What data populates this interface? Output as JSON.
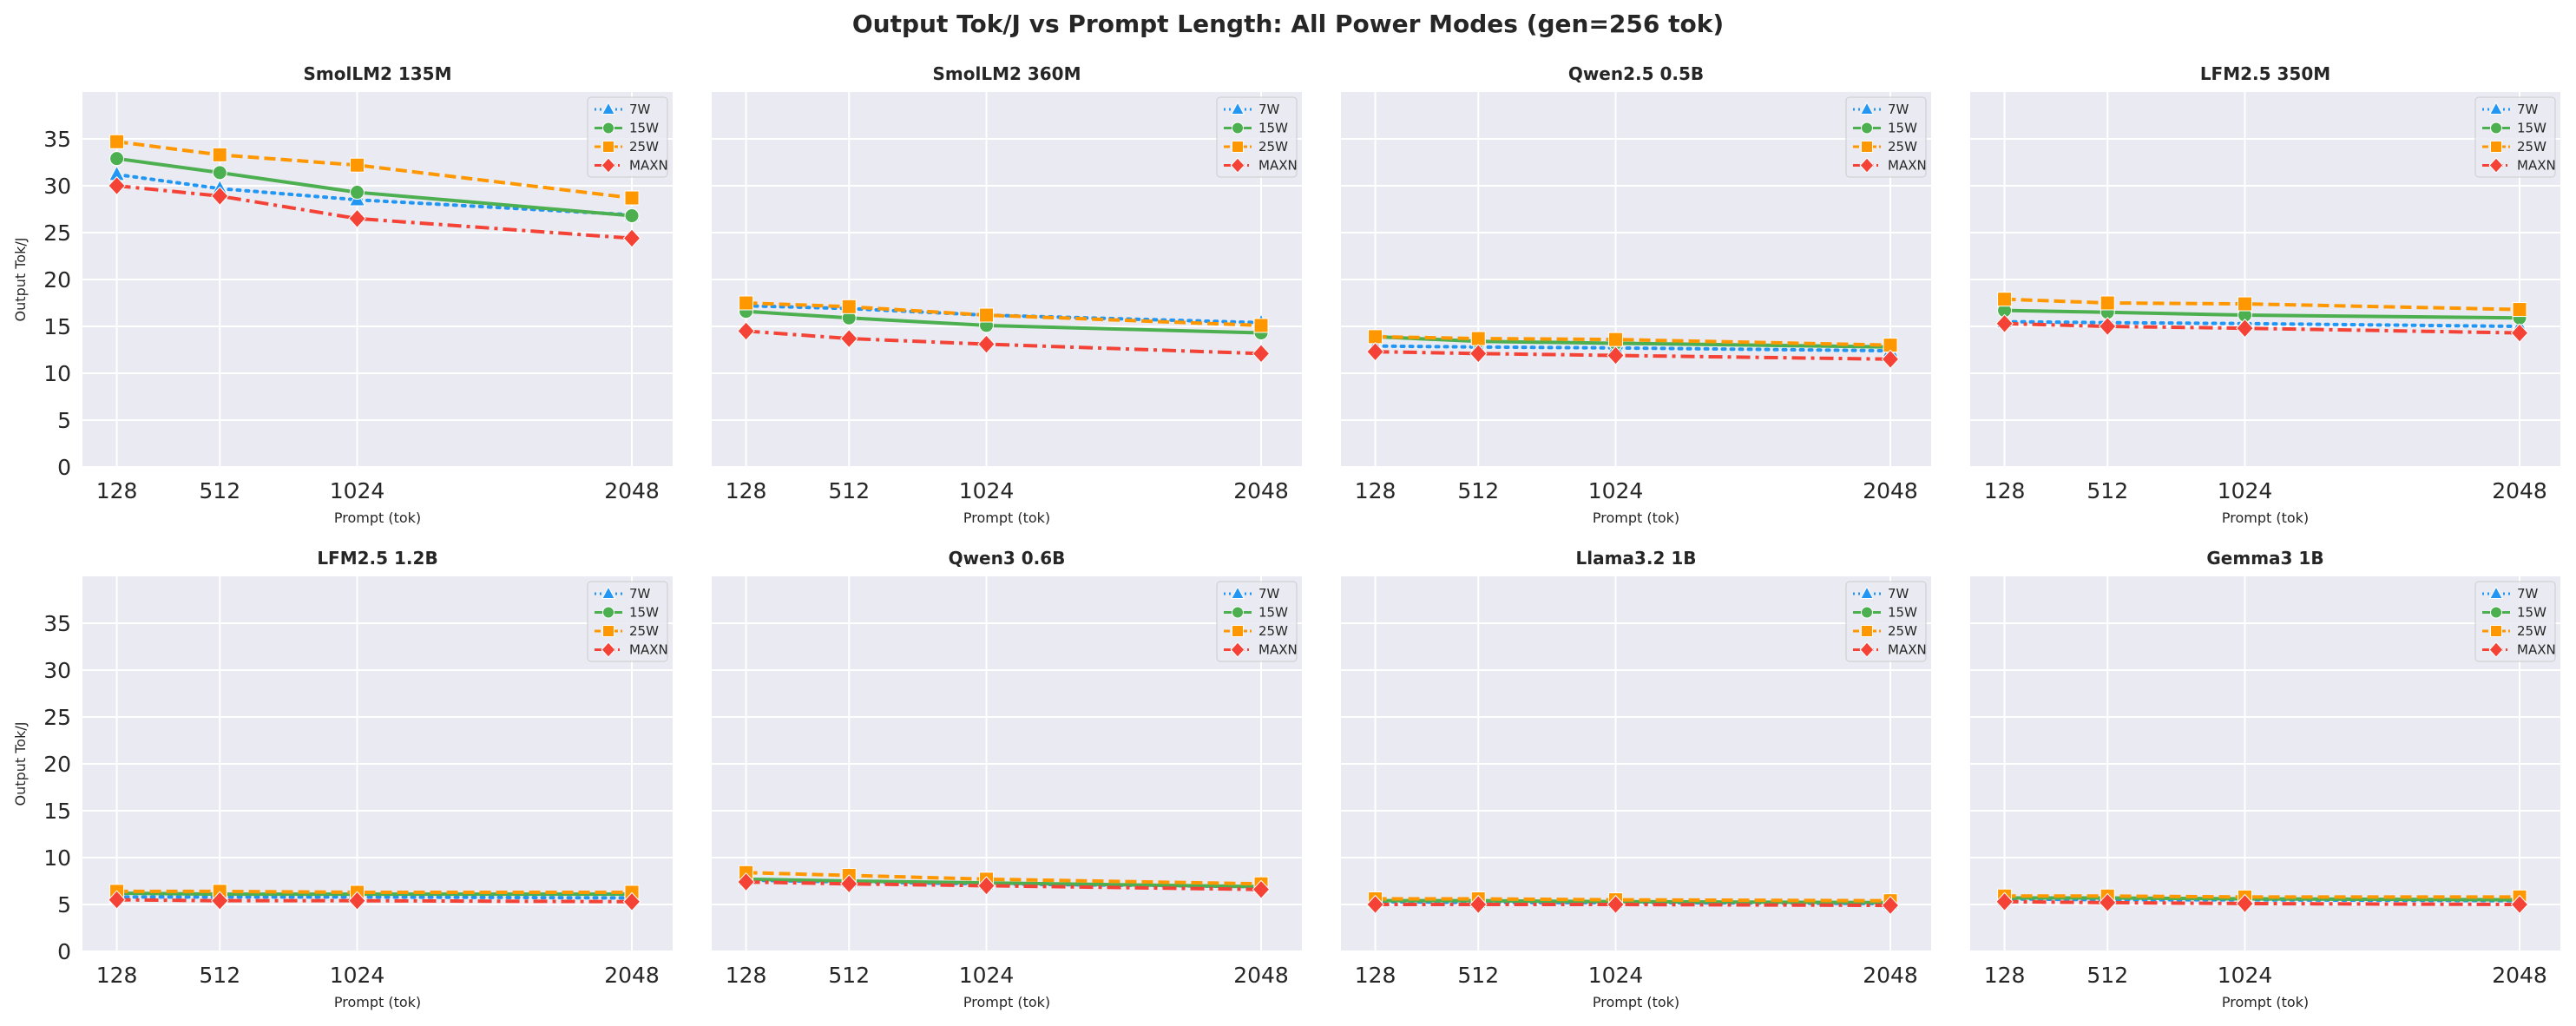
{
  "figure_title": "Output Tok/J vs Prompt Length: All Power Modes (gen=256 tok)",
  "colors": {
    "7W": "#2196f3",
    "15W": "#4caf50",
    "25W": "#ff9800",
    "MAXN": "#f44336",
    "panel_bg": "#eaeaf2",
    "grid": "#ffffff"
  },
  "chart_data": [
    {
      "type": "line",
      "title": "SmolLM2 135M",
      "xlabel": "Prompt (tok)",
      "ylabel": "Output Tok/J",
      "x": [
        128,
        512,
        1024,
        2048
      ],
      "xticks": [
        "128",
        "512",
        "1024",
        "2048"
      ],
      "ylim": [
        0,
        40
      ],
      "yticks": [
        "0",
        "5",
        "10",
        "15",
        "20",
        "25",
        "30",
        "35"
      ],
      "grid": true,
      "legend_position": "top-right",
      "series": [
        {
          "name": "7W",
          "marker": "triangle",
          "dash": "dotted",
          "values": [
            31.2,
            29.7,
            28.5,
            26.9
          ]
        },
        {
          "name": "15W",
          "marker": "circle",
          "dash": "solid",
          "values": [
            32.9,
            31.4,
            29.3,
            26.8
          ]
        },
        {
          "name": "25W",
          "marker": "square",
          "dash": "dashed",
          "values": [
            34.7,
            33.3,
            32.2,
            28.7
          ]
        },
        {
          "name": "MAXN",
          "marker": "diamond",
          "dash": "dashdot",
          "values": [
            30.0,
            28.9,
            26.5,
            24.4
          ]
        }
      ]
    },
    {
      "type": "line",
      "title": "SmolLM2 360M",
      "xlabel": "Prompt (tok)",
      "ylabel": "",
      "x": [
        128,
        512,
        1024,
        2048
      ],
      "xticks": [
        "128",
        "512",
        "1024",
        "2048"
      ],
      "ylim": [
        0,
        40
      ],
      "yticks": [],
      "grid": true,
      "legend_position": "top-right",
      "series": [
        {
          "name": "7W",
          "marker": "triangle",
          "dash": "dotted",
          "values": [
            17.2,
            16.9,
            16.2,
            15.4
          ]
        },
        {
          "name": "15W",
          "marker": "circle",
          "dash": "solid",
          "values": [
            16.6,
            15.9,
            15.1,
            14.3
          ]
        },
        {
          "name": "25W",
          "marker": "square",
          "dash": "dashed",
          "values": [
            17.5,
            17.1,
            16.2,
            15.1
          ]
        },
        {
          "name": "MAXN",
          "marker": "diamond",
          "dash": "dashdot",
          "values": [
            14.5,
            13.7,
            13.1,
            12.1
          ]
        }
      ]
    },
    {
      "type": "line",
      "title": "Qwen2.5 0.5B",
      "xlabel": "Prompt (tok)",
      "ylabel": "",
      "x": [
        128,
        512,
        1024,
        2048
      ],
      "xticks": [
        "128",
        "512",
        "1024",
        "2048"
      ],
      "ylim": [
        0,
        40
      ],
      "yticks": [],
      "grid": true,
      "legend_position": "top-right",
      "series": [
        {
          "name": "7W",
          "marker": "triangle",
          "dash": "dotted",
          "values": [
            12.9,
            12.8,
            12.7,
            12.4
          ]
        },
        {
          "name": "15W",
          "marker": "circle",
          "dash": "solid",
          "values": [
            13.9,
            13.4,
            13.2,
            12.8
          ]
        },
        {
          "name": "25W",
          "marker": "square",
          "dash": "dashed",
          "values": [
            13.9,
            13.7,
            13.6,
            13.0
          ]
        },
        {
          "name": "MAXN",
          "marker": "diamond",
          "dash": "dashdot",
          "values": [
            12.3,
            12.1,
            11.9,
            11.5
          ]
        }
      ]
    },
    {
      "type": "line",
      "title": "LFM2.5 350M",
      "xlabel": "Prompt (tok)",
      "ylabel": "",
      "x": [
        128,
        512,
        1024,
        2048
      ],
      "xticks": [
        "128",
        "512",
        "1024",
        "2048"
      ],
      "ylim": [
        0,
        40
      ],
      "yticks": [],
      "grid": true,
      "legend_position": "top-right",
      "series": [
        {
          "name": "7W",
          "marker": "triangle",
          "dash": "dotted",
          "values": [
            15.5,
            15.4,
            15.3,
            15.0
          ]
        },
        {
          "name": "15W",
          "marker": "circle",
          "dash": "solid",
          "values": [
            16.7,
            16.5,
            16.2,
            15.9
          ]
        },
        {
          "name": "25W",
          "marker": "square",
          "dash": "dashed",
          "values": [
            17.9,
            17.5,
            17.4,
            16.8
          ]
        },
        {
          "name": "MAXN",
          "marker": "diamond",
          "dash": "dashdot",
          "values": [
            15.3,
            15.0,
            14.8,
            14.3
          ]
        }
      ]
    },
    {
      "type": "line",
      "title": "LFM2.5 1.2B",
      "xlabel": "Prompt (tok)",
      "ylabel": "Output Tok/J",
      "x": [
        128,
        512,
        1024,
        2048
      ],
      "xticks": [
        "128",
        "512",
        "1024",
        "2048"
      ],
      "ylim": [
        0,
        40
      ],
      "yticks": [
        "0",
        "5",
        "10",
        "15",
        "20",
        "25",
        "30",
        "35"
      ],
      "grid": true,
      "legend_position": "top-right",
      "series": [
        {
          "name": "7W",
          "marker": "triangle",
          "dash": "dotted",
          "values": [
            5.8,
            5.8,
            5.8,
            5.7
          ]
        },
        {
          "name": "15W",
          "marker": "circle",
          "dash": "solid",
          "values": [
            6.2,
            6.1,
            6.1,
            6.1
          ]
        },
        {
          "name": "25W",
          "marker": "square",
          "dash": "dashed",
          "values": [
            6.4,
            6.4,
            6.3,
            6.3
          ]
        },
        {
          "name": "MAXN",
          "marker": "diamond",
          "dash": "dashdot",
          "values": [
            5.5,
            5.4,
            5.4,
            5.3
          ]
        }
      ]
    },
    {
      "type": "line",
      "title": "Qwen3 0.6B",
      "xlabel": "Prompt (tok)",
      "ylabel": "",
      "x": [
        128,
        512,
        1024,
        2048
      ],
      "xticks": [
        "128",
        "512",
        "1024",
        "2048"
      ],
      "ylim": [
        0,
        40
      ],
      "yticks": [],
      "grid": true,
      "legend_position": "top-right",
      "series": [
        {
          "name": "7W",
          "marker": "triangle",
          "dash": "dotted",
          "values": [
            7.6,
            7.4,
            7.2,
            6.9
          ]
        },
        {
          "name": "15W",
          "marker": "circle",
          "dash": "solid",
          "values": [
            7.7,
            7.5,
            7.3,
            6.9
          ]
        },
        {
          "name": "25W",
          "marker": "square",
          "dash": "dashed",
          "values": [
            8.4,
            8.1,
            7.7,
            7.2
          ]
        },
        {
          "name": "MAXN",
          "marker": "diamond",
          "dash": "dashdot",
          "values": [
            7.4,
            7.2,
            7.0,
            6.6
          ]
        }
      ]
    },
    {
      "type": "line",
      "title": "Llama3.2 1B",
      "xlabel": "Prompt (tok)",
      "ylabel": "",
      "x": [
        128,
        512,
        1024,
        2048
      ],
      "xticks": [
        "128",
        "512",
        "1024",
        "2048"
      ],
      "ylim": [
        0,
        40
      ],
      "yticks": [],
      "grid": true,
      "legend_position": "top-right",
      "series": [
        {
          "name": "7W",
          "marker": "triangle",
          "dash": "dotted",
          "values": [
            5.3,
            5.2,
            5.2,
            5.1
          ]
        },
        {
          "name": "15W",
          "marker": "circle",
          "dash": "solid",
          "values": [
            5.4,
            5.4,
            5.3,
            5.2
          ]
        },
        {
          "name": "25W",
          "marker": "square",
          "dash": "dashed",
          "values": [
            5.6,
            5.6,
            5.5,
            5.4
          ]
        },
        {
          "name": "MAXN",
          "marker": "diamond",
          "dash": "dashdot",
          "values": [
            5.0,
            5.0,
            5.0,
            4.9
          ]
        }
      ]
    },
    {
      "type": "line",
      "title": "Gemma3 1B",
      "xlabel": "Prompt (tok)",
      "ylabel": "",
      "x": [
        128,
        512,
        1024,
        2048
      ],
      "xticks": [
        "128",
        "512",
        "1024",
        "2048"
      ],
      "ylim": [
        0,
        40
      ],
      "yticks": [],
      "grid": true,
      "legend_position": "top-right",
      "series": [
        {
          "name": "7W",
          "marker": "triangle",
          "dash": "dotted",
          "values": [
            5.6,
            5.5,
            5.5,
            5.4
          ]
        },
        {
          "name": "15W",
          "marker": "circle",
          "dash": "solid",
          "values": [
            5.7,
            5.7,
            5.6,
            5.5
          ]
        },
        {
          "name": "25W",
          "marker": "square",
          "dash": "dashed",
          "values": [
            5.9,
            5.9,
            5.8,
            5.8
          ]
        },
        {
          "name": "MAXN",
          "marker": "diamond",
          "dash": "dashdot",
          "values": [
            5.3,
            5.2,
            5.1,
            5.0
          ]
        }
      ]
    }
  ]
}
